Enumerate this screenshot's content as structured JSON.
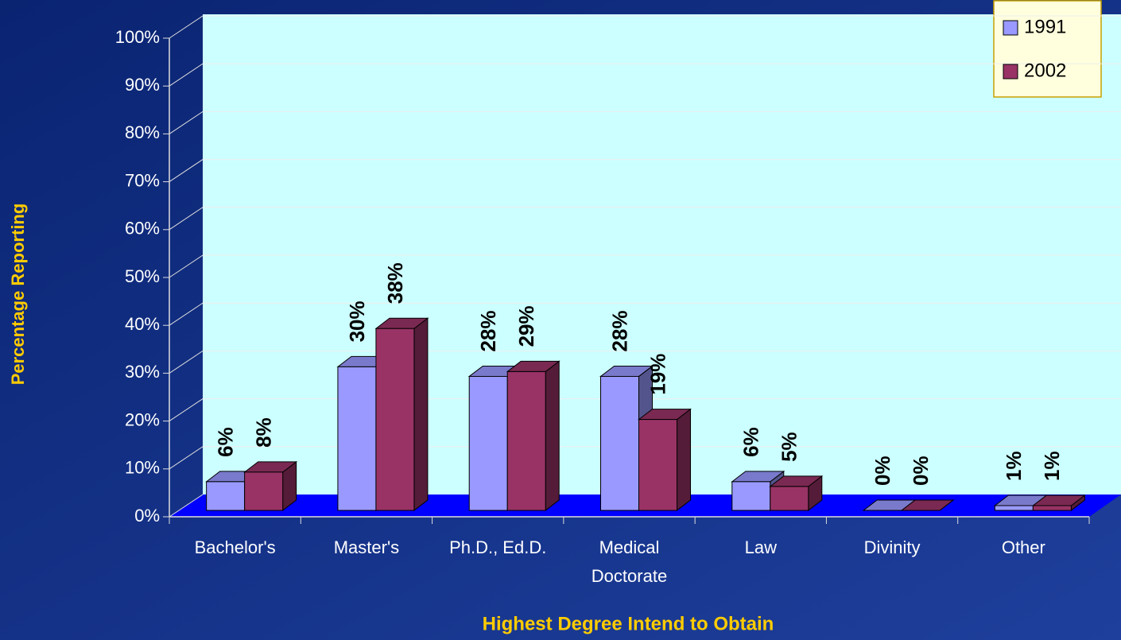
{
  "chart_data": {
    "type": "bar3d",
    "x_label": "Highest Degree Intend to Obtain",
    "y_label": "Percentage Reporting",
    "categories": [
      "Bachelor's",
      "Master's",
      "Ph.D., Ed.D.",
      "Medical\nDoctorate",
      "Law",
      "Divinity",
      "Other"
    ],
    "series": [
      {
        "name": "1991",
        "color": "#9999ff",
        "values": [
          6,
          30,
          28,
          28,
          6,
          0,
          1
        ],
        "value_labels": [
          "6%",
          "30%",
          "28%",
          "28%",
          "6%",
          "0%",
          "1%"
        ]
      },
      {
        "name": "2002",
        "color": "#993366",
        "values": [
          8,
          38,
          29,
          19,
          5,
          0,
          1
        ],
        "value_labels": [
          "8%",
          "38%",
          "29%",
          "19%",
          "5%",
          "0%",
          "1%"
        ]
      }
    ],
    "ylim": [
      0,
      100
    ],
    "yticks": [
      {
        "value": 0,
        "label": "0%"
      },
      {
        "value": 10,
        "label": "10%"
      },
      {
        "value": 20,
        "label": "20%"
      },
      {
        "value": 30,
        "label": "30%"
      },
      {
        "value": 40,
        "label": "40%"
      },
      {
        "value": 50,
        "label": "50%"
      },
      {
        "value": 60,
        "label": "60%"
      },
      {
        "value": 70,
        "label": "70%"
      },
      {
        "value": 80,
        "label": "80%"
      },
      {
        "value": 90,
        "label": "90%"
      },
      {
        "value": 100,
        "label": "100%"
      }
    ],
    "grid": true,
    "legend": "top-right"
  }
}
